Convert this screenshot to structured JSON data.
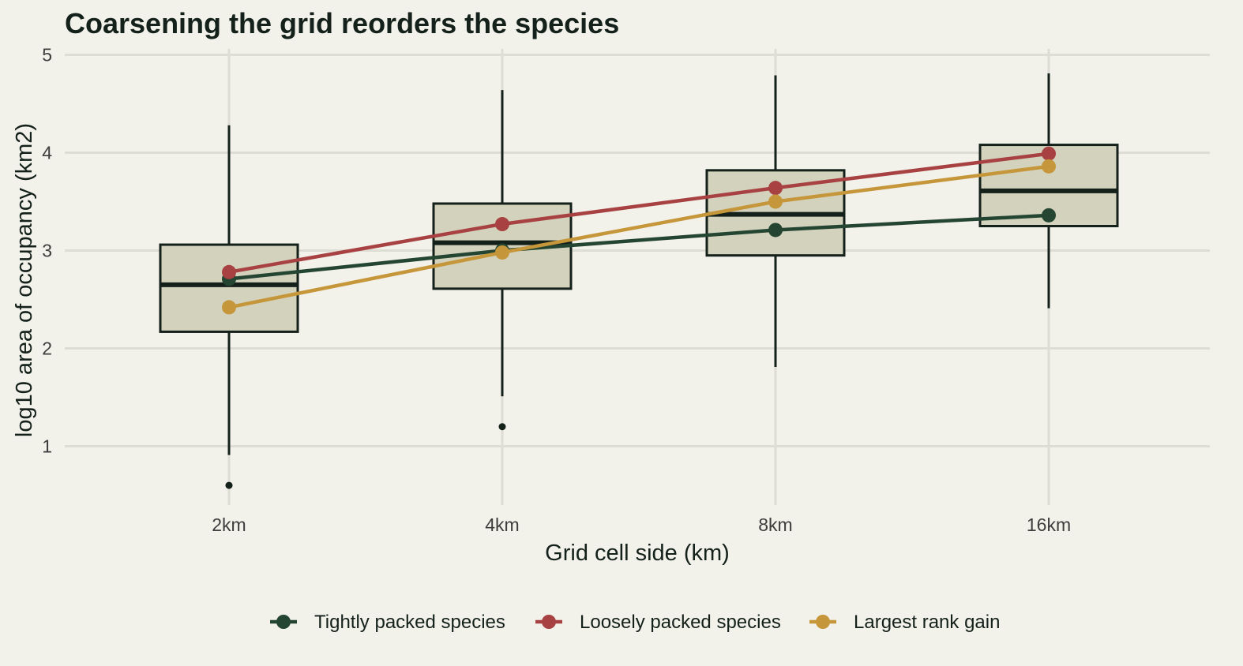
{
  "chart_data": {
    "type": "box",
    "title": "Coarsening the grid reorders the species",
    "xlabel": "Grid cell side (km)",
    "ylabel": "log10 area of occupancy (km2)",
    "categories": [
      "2km",
      "4km",
      "8km",
      "16km"
    ],
    "yticks": [
      1,
      2,
      3,
      4,
      5
    ],
    "ylim": [
      0.45,
      5.05
    ],
    "grid": true,
    "legend_position": "bottom",
    "colors": {
      "background": "#f2f1ea",
      "grid": "#deddd4",
      "box_fill": "#d3d2bd",
      "box_stroke": "#14201a"
    },
    "boxes": [
      {
        "category": "2km",
        "whisker_low": 0.91,
        "q1": 2.17,
        "median": 2.65,
        "q3": 3.06,
        "whisker_high": 4.28,
        "outliers": [
          0.6
        ]
      },
      {
        "category": "4km",
        "whisker_low": 1.51,
        "q1": 2.61,
        "median": 3.08,
        "q3": 3.48,
        "whisker_high": 4.64,
        "outliers": [
          1.2
        ]
      },
      {
        "category": "8km",
        "whisker_low": 1.81,
        "q1": 2.95,
        "median": 3.37,
        "q3": 3.82,
        "whisker_high": 4.79,
        "outliers": []
      },
      {
        "category": "16km",
        "whisker_low": 2.41,
        "q1": 3.25,
        "median": 3.61,
        "q3": 4.08,
        "whisker_high": 4.81,
        "outliers": []
      }
    ],
    "series": [
      {
        "name": "Tightly packed species",
        "color": "#244532",
        "values": [
          2.71,
          3.0,
          3.21,
          3.36
        ]
      },
      {
        "name": "Loosely packed species",
        "color": "#a84242",
        "values": [
          2.78,
          3.27,
          3.64,
          3.99
        ]
      },
      {
        "name": "Largest rank gain",
        "color": "#c6963a",
        "values": [
          2.42,
          2.98,
          3.5,
          3.86
        ]
      }
    ]
  }
}
